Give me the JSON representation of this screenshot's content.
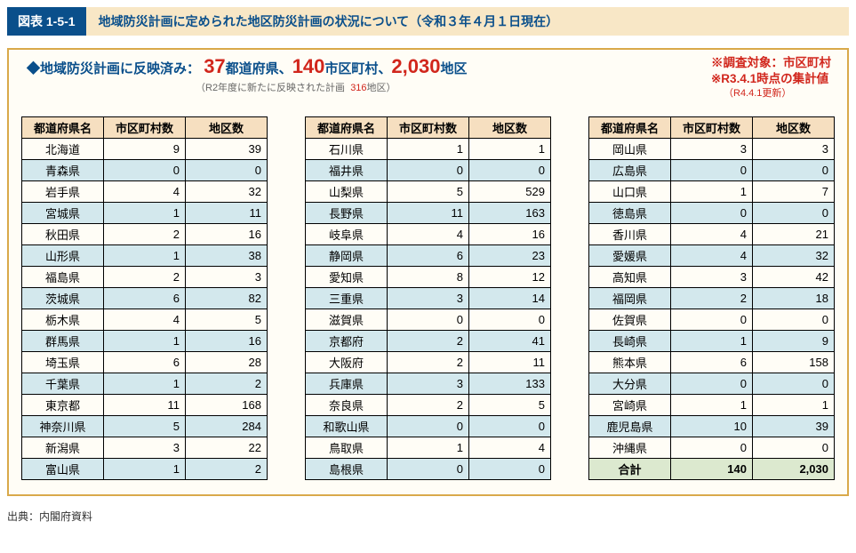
{
  "banner": {
    "tag": "図表 1-5-1",
    "title": "地域防災計画に定められた地区防災計画の状況について（令和３年４月１日現在）"
  },
  "summary": {
    "lead": "◆地域防災計画に反映済み：",
    "v1": "37",
    "u1": "都道府県、",
    "v2": "140",
    "u2": "市区町村、",
    "v3": "2,030",
    "u3": "地区",
    "sub_a": "（R2年度に新たに反映された計画",
    "sub_b": "316",
    "sub_c": "地区）",
    "right1": "※調査対象：市区町村",
    "right2": "※R3.4.1時点の集計値",
    "right3": "（R4.4.1更新）"
  },
  "headers": {
    "h1": "都道府県名",
    "h2": "市区町村数",
    "h3": "地区数"
  },
  "t1": [
    [
      "北海道",
      "9",
      "39"
    ],
    [
      "青森県",
      "0",
      "0"
    ],
    [
      "岩手県",
      "4",
      "32"
    ],
    [
      "宮城県",
      "1",
      "11"
    ],
    [
      "秋田県",
      "2",
      "16"
    ],
    [
      "山形県",
      "1",
      "38"
    ],
    [
      "福島県",
      "2",
      "3"
    ],
    [
      "茨城県",
      "6",
      "82"
    ],
    [
      "栃木県",
      "4",
      "5"
    ],
    [
      "群馬県",
      "1",
      "16"
    ],
    [
      "埼玉県",
      "6",
      "28"
    ],
    [
      "千葉県",
      "1",
      "2"
    ],
    [
      "東京都",
      "11",
      "168"
    ],
    [
      "神奈川県",
      "5",
      "284"
    ],
    [
      "新潟県",
      "3",
      "22"
    ],
    [
      "富山県",
      "1",
      "2"
    ]
  ],
  "t2": [
    [
      "石川県",
      "1",
      "1"
    ],
    [
      "福井県",
      "0",
      "0"
    ],
    [
      "山梨県",
      "5",
      "529"
    ],
    [
      "長野県",
      "11",
      "163"
    ],
    [
      "岐阜県",
      "4",
      "16"
    ],
    [
      "静岡県",
      "6",
      "23"
    ],
    [
      "愛知県",
      "8",
      "12"
    ],
    [
      "三重県",
      "3",
      "14"
    ],
    [
      "滋賀県",
      "0",
      "0"
    ],
    [
      "京都府",
      "2",
      "41"
    ],
    [
      "大阪府",
      "2",
      "11"
    ],
    [
      "兵庫県",
      "3",
      "133"
    ],
    [
      "奈良県",
      "2",
      "5"
    ],
    [
      "和歌山県",
      "0",
      "0"
    ],
    [
      "鳥取県",
      "1",
      "4"
    ],
    [
      "島根県",
      "0",
      "0"
    ]
  ],
  "t3": [
    [
      "岡山県",
      "3",
      "3"
    ],
    [
      "広島県",
      "0",
      "0"
    ],
    [
      "山口県",
      "1",
      "7"
    ],
    [
      "徳島県",
      "0",
      "0"
    ],
    [
      "香川県",
      "4",
      "21"
    ],
    [
      "愛媛県",
      "4",
      "32"
    ],
    [
      "高知県",
      "3",
      "42"
    ],
    [
      "福岡県",
      "2",
      "18"
    ],
    [
      "佐賀県",
      "0",
      "0"
    ],
    [
      "長崎県",
      "1",
      "9"
    ],
    [
      "熊本県",
      "6",
      "158"
    ],
    [
      "大分県",
      "0",
      "0"
    ],
    [
      "宮崎県",
      "1",
      "1"
    ],
    [
      "鹿児島県",
      "10",
      "39"
    ],
    [
      "沖縄県",
      "0",
      "0"
    ]
  ],
  "total": {
    "label": "合計",
    "v1": "140",
    "v2": "2,030"
  },
  "source": "出典：内閣府資料"
}
